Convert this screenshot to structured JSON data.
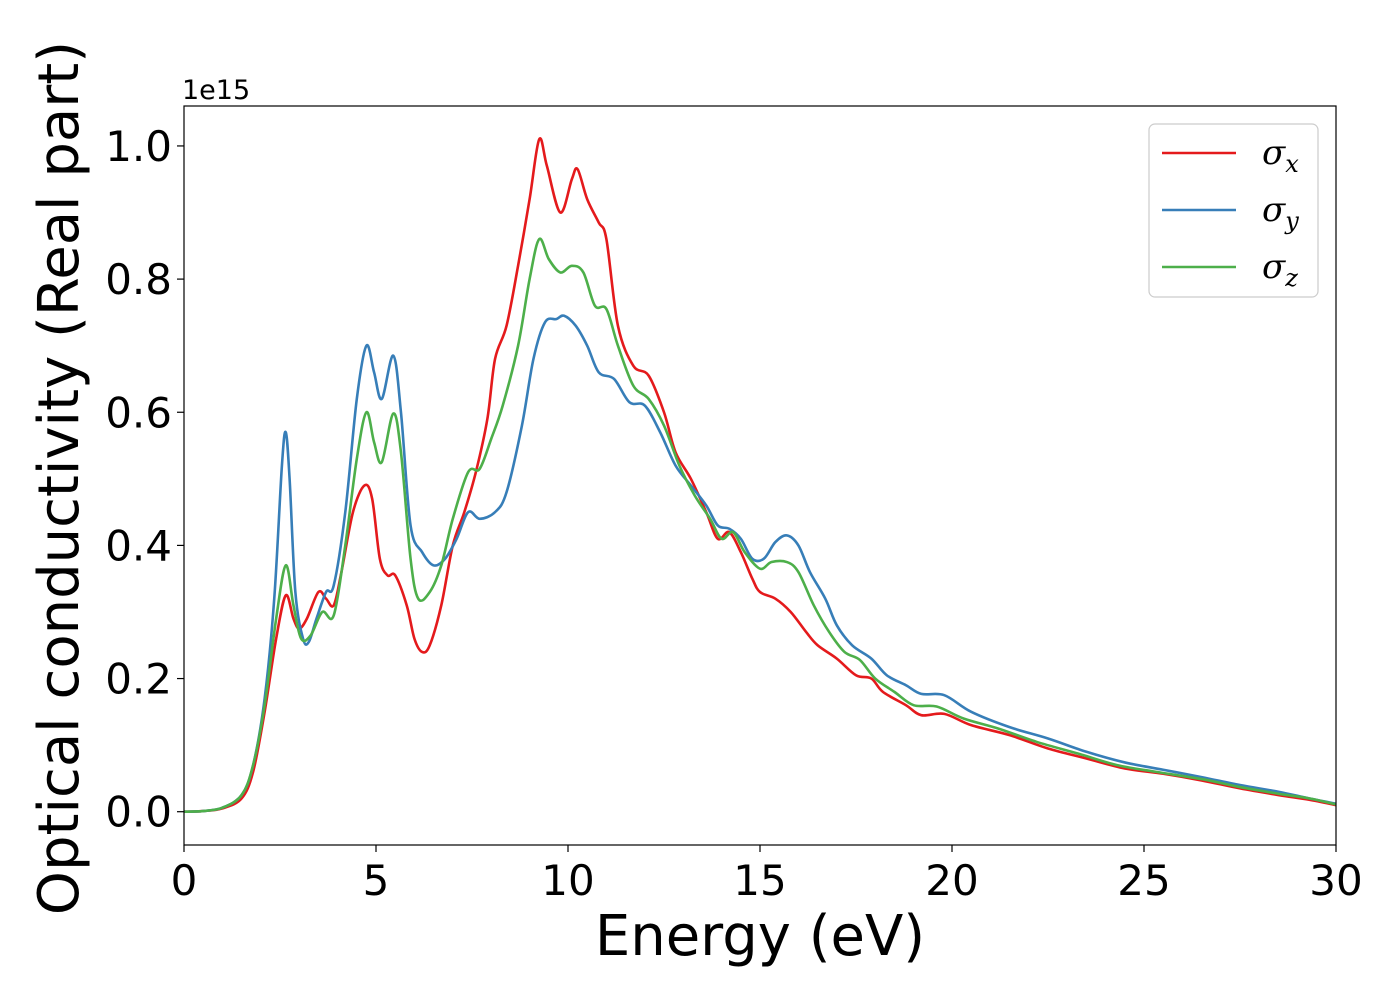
{
  "chart_data": {
    "type": "line",
    "xlabel": "Energy (eV)",
    "ylabel": "Optical conductivity (Real part)",
    "y_offset_text": "1e15",
    "y_scale": 1000000000000000.0,
    "xlim": [
      0,
      30
    ],
    "ylim": [
      -0.05,
      1.06
    ],
    "x_ticks": [
      0,
      5,
      10,
      15,
      20,
      25,
      30
    ],
    "x_tick_labels": [
      "0",
      "5",
      "10",
      "15",
      "20",
      "25",
      "30"
    ],
    "y_ticks": [
      0.0,
      0.2,
      0.4,
      0.6,
      0.8,
      1.0
    ],
    "y_tick_labels": [
      "0.0",
      "0.2",
      "0.4",
      "0.6",
      "0.8",
      "1.0"
    ],
    "grid": false,
    "legend_position": "top-right",
    "series": [
      {
        "name": "σx",
        "symbol": "σ",
        "subscript": "x",
        "color": "#e41a1c",
        "points": [
          [
            0,
            0
          ],
          [
            0.5,
            0.001
          ],
          [
            1.0,
            0.005
          ],
          [
            1.5,
            0.02
          ],
          [
            1.8,
            0.06
          ],
          [
            2.1,
            0.15
          ],
          [
            2.4,
            0.26
          ],
          [
            2.65,
            0.325
          ],
          [
            2.85,
            0.29
          ],
          [
            3.0,
            0.275
          ],
          [
            3.2,
            0.29
          ],
          [
            3.5,
            0.33
          ],
          [
            3.7,
            0.32
          ],
          [
            3.9,
            0.31
          ],
          [
            4.1,
            0.36
          ],
          [
            4.4,
            0.45
          ],
          [
            4.7,
            0.49
          ],
          [
            4.9,
            0.47
          ],
          [
            5.1,
            0.38
          ],
          [
            5.3,
            0.355
          ],
          [
            5.5,
            0.355
          ],
          [
            5.8,
            0.31
          ],
          [
            6.0,
            0.26
          ],
          [
            6.2,
            0.24
          ],
          [
            6.4,
            0.25
          ],
          [
            6.7,
            0.31
          ],
          [
            7.0,
            0.4
          ],
          [
            7.3,
            0.45
          ],
          [
            7.6,
            0.51
          ],
          [
            7.9,
            0.59
          ],
          [
            8.1,
            0.68
          ],
          [
            8.4,
            0.73
          ],
          [
            8.7,
            0.82
          ],
          [
            9.0,
            0.92
          ],
          [
            9.25,
            1.01
          ],
          [
            9.45,
            0.97
          ],
          [
            9.8,
            0.9
          ],
          [
            10.1,
            0.95
          ],
          [
            10.25,
            0.965
          ],
          [
            10.5,
            0.92
          ],
          [
            10.8,
            0.885
          ],
          [
            11.0,
            0.86
          ],
          [
            11.3,
            0.73
          ],
          [
            11.7,
            0.67
          ],
          [
            12.1,
            0.655
          ],
          [
            12.5,
            0.6
          ],
          [
            12.8,
            0.54
          ],
          [
            13.2,
            0.5
          ],
          [
            13.6,
            0.45
          ],
          [
            13.9,
            0.41
          ],
          [
            14.2,
            0.42
          ],
          [
            14.5,
            0.39
          ],
          [
            14.8,
            0.35
          ],
          [
            15.0,
            0.33
          ],
          [
            15.4,
            0.32
          ],
          [
            15.8,
            0.3
          ],
          [
            16.2,
            0.27
          ],
          [
            16.5,
            0.25
          ],
          [
            17.0,
            0.23
          ],
          [
            17.5,
            0.205
          ],
          [
            17.9,
            0.2
          ],
          [
            18.2,
            0.18
          ],
          [
            18.8,
            0.16
          ],
          [
            19.2,
            0.145
          ],
          [
            19.8,
            0.147
          ],
          [
            20.5,
            0.13
          ],
          [
            21.5,
            0.115
          ],
          [
            22.5,
            0.095
          ],
          [
            23.5,
            0.08
          ],
          [
            24.5,
            0.065
          ],
          [
            25.5,
            0.057
          ],
          [
            26.5,
            0.047
          ],
          [
            27.5,
            0.035
          ],
          [
            28.5,
            0.025
          ],
          [
            29.3,
            0.018
          ],
          [
            30,
            0.01
          ]
        ]
      },
      {
        "name": "σy",
        "symbol": "σ",
        "subscript": "y",
        "color": "#377eb8",
        "points": [
          [
            0,
            0
          ],
          [
            0.5,
            0.001
          ],
          [
            1.0,
            0.006
          ],
          [
            1.5,
            0.025
          ],
          [
            1.8,
            0.07
          ],
          [
            2.1,
            0.17
          ],
          [
            2.35,
            0.32
          ],
          [
            2.55,
            0.52
          ],
          [
            2.65,
            0.57
          ],
          [
            2.75,
            0.5
          ],
          [
            2.9,
            0.33
          ],
          [
            3.1,
            0.26
          ],
          [
            3.25,
            0.255
          ],
          [
            3.45,
            0.29
          ],
          [
            3.7,
            0.33
          ],
          [
            3.9,
            0.34
          ],
          [
            4.2,
            0.45
          ],
          [
            4.5,
            0.62
          ],
          [
            4.75,
            0.7
          ],
          [
            4.95,
            0.66
          ],
          [
            5.15,
            0.62
          ],
          [
            5.45,
            0.685
          ],
          [
            5.65,
            0.6
          ],
          [
            5.9,
            0.43
          ],
          [
            6.2,
            0.39
          ],
          [
            6.5,
            0.37
          ],
          [
            6.8,
            0.38
          ],
          [
            7.1,
            0.41
          ],
          [
            7.4,
            0.45
          ],
          [
            7.7,
            0.44
          ],
          [
            8.1,
            0.45
          ],
          [
            8.4,
            0.48
          ],
          [
            8.8,
            0.58
          ],
          [
            9.1,
            0.68
          ],
          [
            9.4,
            0.735
          ],
          [
            9.7,
            0.74
          ],
          [
            9.9,
            0.745
          ],
          [
            10.2,
            0.73
          ],
          [
            10.5,
            0.7
          ],
          [
            10.8,
            0.66
          ],
          [
            11.2,
            0.65
          ],
          [
            11.6,
            0.615
          ],
          [
            12.0,
            0.61
          ],
          [
            12.4,
            0.57
          ],
          [
            12.8,
            0.52
          ],
          [
            13.2,
            0.49
          ],
          [
            13.6,
            0.46
          ],
          [
            13.9,
            0.43
          ],
          [
            14.2,
            0.425
          ],
          [
            14.5,
            0.41
          ],
          [
            14.8,
            0.38
          ],
          [
            15.1,
            0.38
          ],
          [
            15.4,
            0.405
          ],
          [
            15.7,
            0.415
          ],
          [
            16.0,
            0.4
          ],
          [
            16.3,
            0.36
          ],
          [
            16.7,
            0.32
          ],
          [
            17.0,
            0.28
          ],
          [
            17.4,
            0.25
          ],
          [
            17.9,
            0.23
          ],
          [
            18.3,
            0.205
          ],
          [
            18.8,
            0.19
          ],
          [
            19.2,
            0.177
          ],
          [
            19.8,
            0.175
          ],
          [
            20.5,
            0.15
          ],
          [
            21.5,
            0.127
          ],
          [
            22.5,
            0.11
          ],
          [
            23.5,
            0.09
          ],
          [
            24.5,
            0.074
          ],
          [
            25.5,
            0.063
          ],
          [
            26.5,
            0.052
          ],
          [
            27.5,
            0.04
          ],
          [
            28.5,
            0.03
          ],
          [
            29.3,
            0.02
          ],
          [
            30,
            0.012
          ]
        ]
      },
      {
        "name": "σz",
        "symbol": "σ",
        "subscript": "z",
        "color": "#4daf4a",
        "points": [
          [
            0,
            0
          ],
          [
            0.5,
            0.001
          ],
          [
            1.0,
            0.006
          ],
          [
            1.5,
            0.025
          ],
          [
            1.8,
            0.07
          ],
          [
            2.1,
            0.16
          ],
          [
            2.4,
            0.29
          ],
          [
            2.65,
            0.37
          ],
          [
            2.85,
            0.31
          ],
          [
            3.05,
            0.26
          ],
          [
            3.3,
            0.265
          ],
          [
            3.6,
            0.3
          ],
          [
            3.9,
            0.295
          ],
          [
            4.2,
            0.4
          ],
          [
            4.5,
            0.53
          ],
          [
            4.75,
            0.6
          ],
          [
            4.95,
            0.555
          ],
          [
            5.15,
            0.525
          ],
          [
            5.45,
            0.598
          ],
          [
            5.65,
            0.54
          ],
          [
            5.9,
            0.38
          ],
          [
            6.1,
            0.32
          ],
          [
            6.4,
            0.33
          ],
          [
            6.7,
            0.37
          ],
          [
            7.0,
            0.44
          ],
          [
            7.4,
            0.51
          ],
          [
            7.7,
            0.515
          ],
          [
            8.0,
            0.56
          ],
          [
            8.3,
            0.61
          ],
          [
            8.7,
            0.7
          ],
          [
            9.0,
            0.8
          ],
          [
            9.25,
            0.86
          ],
          [
            9.5,
            0.83
          ],
          [
            9.8,
            0.81
          ],
          [
            10.1,
            0.82
          ],
          [
            10.4,
            0.81
          ],
          [
            10.7,
            0.76
          ],
          [
            11.0,
            0.755
          ],
          [
            11.3,
            0.7
          ],
          [
            11.7,
            0.64
          ],
          [
            12.1,
            0.62
          ],
          [
            12.5,
            0.58
          ],
          [
            12.9,
            0.52
          ],
          [
            13.3,
            0.475
          ],
          [
            13.7,
            0.44
          ],
          [
            14.0,
            0.41
          ],
          [
            14.3,
            0.42
          ],
          [
            14.6,
            0.39
          ],
          [
            15.0,
            0.365
          ],
          [
            15.3,
            0.375
          ],
          [
            15.7,
            0.375
          ],
          [
            16.0,
            0.36
          ],
          [
            16.4,
            0.31
          ],
          [
            16.8,
            0.27
          ],
          [
            17.2,
            0.24
          ],
          [
            17.6,
            0.228
          ],
          [
            18.0,
            0.2
          ],
          [
            18.5,
            0.18
          ],
          [
            19.0,
            0.16
          ],
          [
            19.6,
            0.158
          ],
          [
            20.3,
            0.14
          ],
          [
            21.2,
            0.125
          ],
          [
            22.2,
            0.105
          ],
          [
            23.3,
            0.087
          ],
          [
            24.3,
            0.07
          ],
          [
            25.3,
            0.06
          ],
          [
            26.5,
            0.049
          ],
          [
            27.5,
            0.037
          ],
          [
            28.5,
            0.027
          ],
          [
            29.3,
            0.02
          ],
          [
            30,
            0.011
          ]
        ]
      }
    ]
  }
}
